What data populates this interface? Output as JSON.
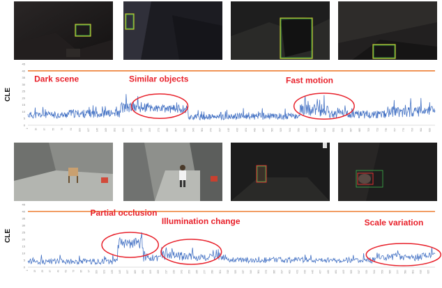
{
  "rows": [
    {
      "thumbnails": [
        {
          "scene": "dark-indoor-1",
          "box_colors": [
            "#c8c832",
            "#3cb44b"
          ]
        },
        {
          "scene": "dark-indoor-2",
          "box_colors": [
            "#c8c832",
            "#3cb44b"
          ]
        },
        {
          "scene": "dark-indoor-3",
          "box_colors": [
            "#c8c832",
            "#3cb44b"
          ]
        },
        {
          "scene": "dark-indoor-4",
          "box_colors": [
            "#c8c832",
            "#3cb44b"
          ]
        }
      ]
    },
    {
      "thumbnails": [
        {
          "scene": "hallway-chair",
          "box_colors": [
            "#3cb44b",
            "#e03030"
          ]
        },
        {
          "scene": "hallway-child",
          "box_colors": [
            "#3cb44b",
            "#e03030"
          ]
        },
        {
          "scene": "dark-child",
          "box_colors": [
            "#e03030",
            "#3cb44b"
          ]
        },
        {
          "scene": "dark-close",
          "box_colors": [
            "#e03030",
            "#3cb44b"
          ]
        }
      ]
    }
  ],
  "chart_data": [
    {
      "type": "line",
      "ylabel": "CLE",
      "xlabel": "",
      "ylim": [
        0,
        45
      ],
      "yticks": [
        0,
        5,
        10,
        15,
        20,
        25,
        30,
        35,
        40,
        45
      ],
      "x_range": [
        1,
        838
      ],
      "x_tick_step": 18,
      "threshold": 40,
      "colors": {
        "series": "#4472c4",
        "threshold": "#ed7d31",
        "annotation": "#e8202a"
      },
      "segments": [
        {
          "x_end": 80,
          "level": 7.5,
          "amp": 2.5
        },
        {
          "x_end": 190,
          "level": 8.5,
          "amp": 3
        },
        {
          "x_end": 260,
          "level": 13,
          "amp": 4
        },
        {
          "x_end": 330,
          "level": 12,
          "amp": 3
        },
        {
          "x_end": 420,
          "level": 6,
          "amp": 2.2
        },
        {
          "x_end": 560,
          "level": 6.5,
          "amp": 2.5
        },
        {
          "x_end": 620,
          "level": 11,
          "amp": 4.5
        },
        {
          "x_end": 740,
          "level": 8,
          "amp": 3
        },
        {
          "x_end": 838,
          "level": 10,
          "amp": 4
        }
      ],
      "annotations": [
        {
          "text": "Dark scene",
          "x": 60,
          "y": 32,
          "circle": false
        },
        {
          "text": "Similar objects",
          "x": 270,
          "y": 32,
          "circle": true,
          "cx": 272,
          "cy": 14,
          "rx": 58,
          "ry": 9
        },
        {
          "text": "Fast motion",
          "x": 580,
          "y": 31,
          "circle": true,
          "cx": 610,
          "cy": 14,
          "rx": 62,
          "ry": 9.5
        }
      ]
    },
    {
      "type": "line",
      "ylabel": "CLE",
      "xlabel": "",
      "ylim": [
        0,
        45
      ],
      "yticks": [
        0,
        5,
        10,
        15,
        20,
        25,
        30,
        35,
        40,
        45
      ],
      "x_range": [
        1,
        634
      ],
      "x_tick_step": 12,
      "threshold": 40,
      "colors": {
        "series": "#4472c4",
        "threshold": "#ed7d31",
        "annotation": "#e8202a"
      },
      "segments": [
        {
          "x_end": 140,
          "level": 4,
          "amp": 2
        },
        {
          "x_end": 180,
          "level": 17,
          "amp": 4
        },
        {
          "x_end": 210,
          "level": 7,
          "amp": 3
        },
        {
          "x_end": 260,
          "level": 8,
          "amp": 3.5
        },
        {
          "x_end": 310,
          "level": 7,
          "amp": 2.5
        },
        {
          "x_end": 540,
          "level": 5,
          "amp": 2
        },
        {
          "x_end": 634,
          "level": 7.5,
          "amp": 3
        }
      ],
      "annotations": [
        {
          "text": "Partial occlusion",
          "x": 150,
          "y": 37,
          "circle": true,
          "cx": 160,
          "cy": 16,
          "rx": 44,
          "ry": 9
        },
        {
          "text": "Illumination change",
          "x": 270,
          "y": 31,
          "circle": true,
          "cx": 255,
          "cy": 11,
          "rx": 47,
          "ry": 9
        },
        {
          "text": "Scale variation",
          "x": 570,
          "y": 30,
          "circle": true,
          "cx": 585,
          "cy": 9,
          "rx": 58,
          "ry": 8
        }
      ]
    }
  ]
}
